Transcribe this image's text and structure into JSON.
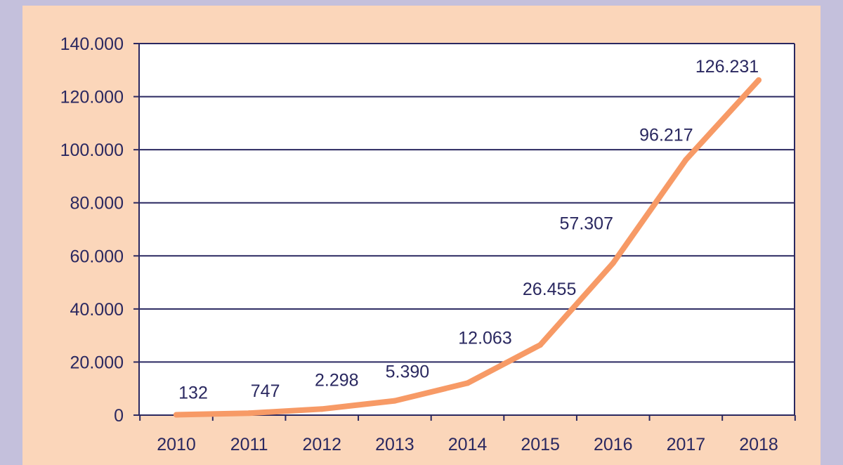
{
  "chart_data": {
    "type": "line",
    "title": "",
    "xlabel": "",
    "ylabel": "",
    "categories": [
      "2010",
      "2011",
      "2012",
      "2013",
      "2014",
      "2015",
      "2016",
      "2017",
      "2018"
    ],
    "series": [
      {
        "values": [
          132,
          747,
          2298,
          5390,
          12063,
          26455,
          57307,
          96217,
          126231
        ],
        "labels": [
          "132",
          "747",
          "2.298",
          "5.390",
          "12.063",
          "26.455",
          "57.307",
          "96.217",
          "126.231"
        ],
        "color": "#f79a66"
      }
    ],
    "ylim": [
      0,
      140000
    ],
    "y_ticks": [
      0,
      20000,
      40000,
      60000,
      80000,
      100000,
      120000,
      140000
    ],
    "y_tick_labels": [
      "0",
      "20.000",
      "40.000",
      "60.000",
      "80.000",
      "100.000",
      "120.000",
      "140.000"
    ],
    "grid": "horizontal",
    "legend": "none"
  },
  "colors": {
    "page_background": "#c4c0dc",
    "panel_background": "#fbd6ba",
    "plot_background": "#ffffff",
    "grid_and_axes": "#2a2860",
    "text": "#2a2860"
  }
}
